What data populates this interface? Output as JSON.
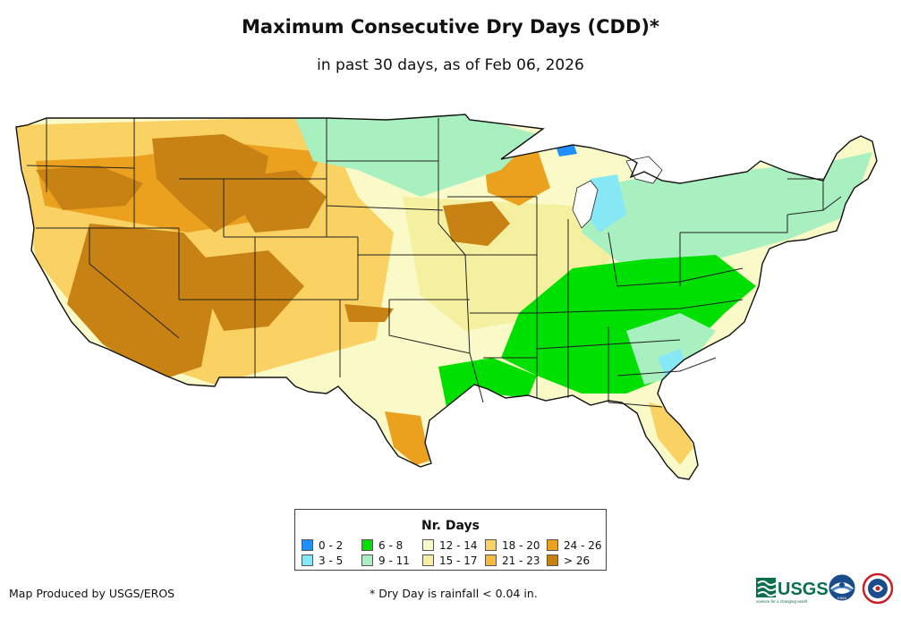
{
  "title": "Maximum Consecutive Dry Days (CDD)*",
  "subtitle": "in past 30 days, as of Feb 06, 2026",
  "legend": {
    "title": "Nr. Days",
    "items": [
      {
        "label": "0 - 2",
        "color": "#1e90ff"
      },
      {
        "label": "3 - 5",
        "color": "#87e8f5"
      },
      {
        "label": "6 - 8",
        "color": "#00e000"
      },
      {
        "label": "9 - 11",
        "color": "#a8f0c0"
      },
      {
        "label": "12 - 14",
        "color": "#fafac8"
      },
      {
        "label": "15 - 17",
        "color": "#f5f0a0"
      },
      {
        "label": "18 - 20",
        "color": "#fad264"
      },
      {
        "label": "21 - 23",
        "color": "#f5b93c"
      },
      {
        "label": "24 - 26",
        "color": "#eba01e"
      },
      {
        "label": "> 26",
        "color": "#c88214"
      }
    ]
  },
  "credit": "Map Produced by USGS/EROS",
  "footnote": "* Dry Day is rainfall < 0.04 in.",
  "logos": {
    "usgs": "USGS",
    "usgs_tagline": "science for a changing world",
    "noaa": "noaa",
    "nws_icon": "national-weather-service-seal"
  }
}
